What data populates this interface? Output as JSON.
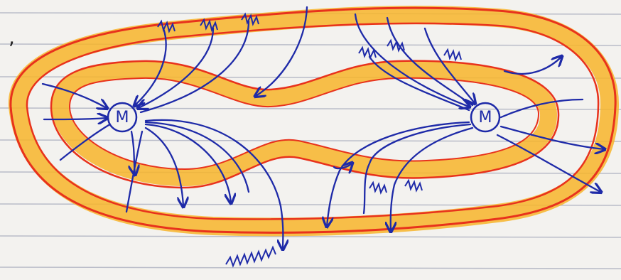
{
  "nodes": [
    {
      "label": "M"
    },
    {
      "label": "M"
    }
  ]
}
